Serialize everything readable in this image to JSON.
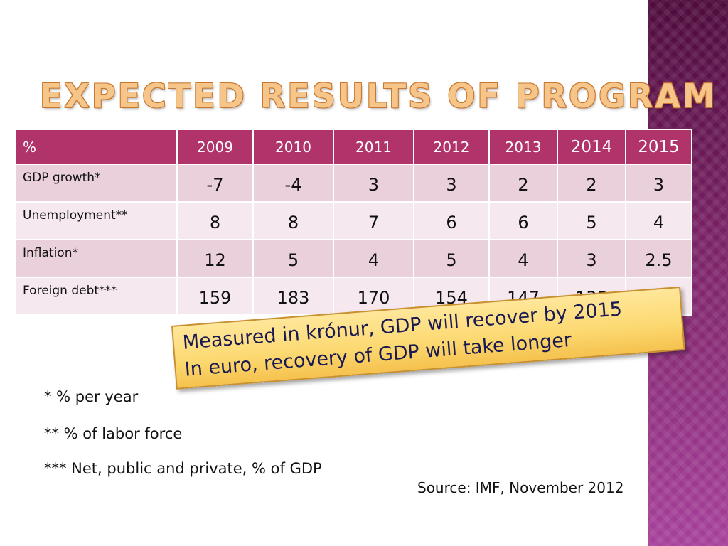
{
  "slide": {
    "title": "Expected results of program",
    "table": {
      "header_label": "%",
      "years": [
        "2009",
        "2010",
        "2011",
        "2012",
        "2013",
        "2014",
        "2015"
      ],
      "rows": [
        {
          "label": "GDP growth*",
          "values": [
            "-7",
            "-4",
            "3",
            "3",
            "2",
            "2",
            "3"
          ]
        },
        {
          "label": "Unemployment**",
          "values": [
            "8",
            "8",
            "7",
            "6",
            "6",
            "5",
            "4"
          ]
        },
        {
          "label": "Inflation*",
          "values": [
            "12",
            "5",
            "4",
            "5",
            "4",
            "3",
            "2.5"
          ]
        },
        {
          "label": "Foreign debt***",
          "values": [
            "159",
            "183",
            "170",
            "154",
            "147",
            "135",
            "131"
          ]
        }
      ]
    },
    "callout": {
      "line1": "Measured in krónur, GDP will recover by 2015",
      "line2": "In euro, recovery of GDP will take longer"
    },
    "footnotes": [
      "* % per year",
      "** % of labor force",
      "*** Net, public and private, % of GDP"
    ],
    "source": "Source: IMF, November 2012",
    "colors": {
      "header": "#b0336a",
      "row_dark": "#ead0da",
      "row_light": "#f5e8ee",
      "title": "#f6c58a",
      "callout": "#fcd870",
      "side_band": "#7a2266"
    }
  }
}
